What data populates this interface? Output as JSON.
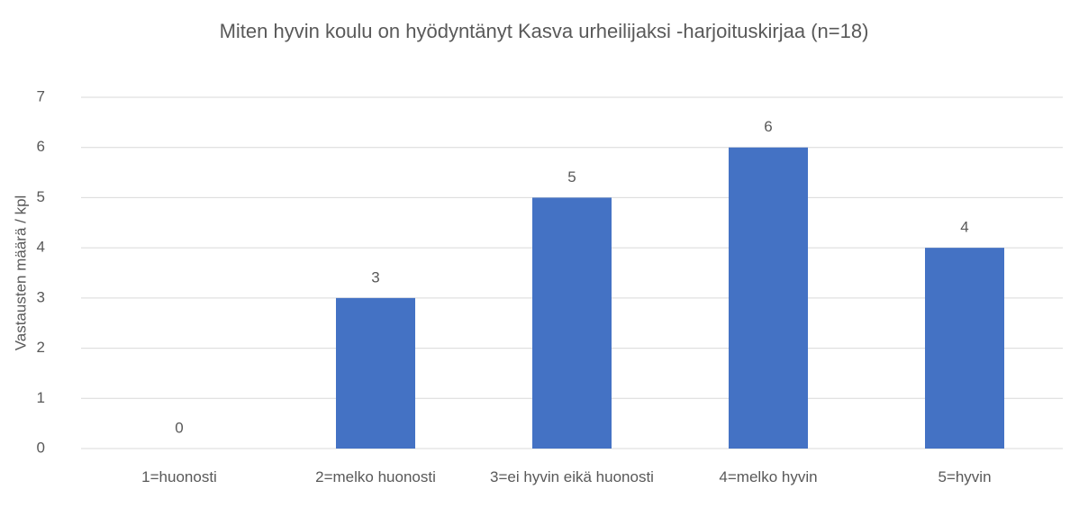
{
  "chart_data": {
    "type": "bar",
    "title": "Miten hyvin koulu on hyödyntänyt Kasva urheilijaksi -harjoituskirjaa (n=18)",
    "y_label": "Vastausten määrä / kpl",
    "categories": [
      "1=huonosti",
      "2=melko huonosti",
      "3=ei hyvin eikä huonosti",
      "4=melko hyvin",
      "5=hyvin"
    ],
    "values": [
      0,
      3,
      5,
      6,
      4
    ],
    "color": "#4472c4",
    "ylim": [
      0,
      7
    ],
    "yticks": [
      0,
      1,
      2,
      3,
      4,
      5,
      6,
      7
    ],
    "grid": true
  }
}
